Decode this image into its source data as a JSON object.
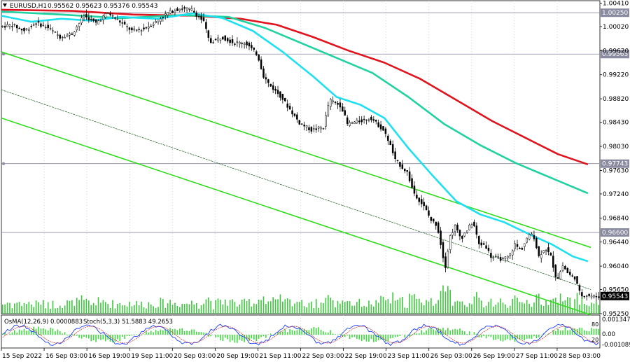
{
  "header": {
    "symbol": "EURUSD,H1",
    "ohlc": "0.95562 0.95623 0.95376 0.95543"
  },
  "sub_header": {
    "osma": "OsMA(12,26,9) 0.0000883",
    "stoch": "Stoch(5,3,3) 51.5883 49.2653"
  },
  "chart_data": {
    "type": "candlestick",
    "instrument": "EURUSD",
    "timeframe": "H1",
    "last": {
      "open": 0.95562,
      "high": 0.95623,
      "low": 0.95376,
      "close": 0.95543
    },
    "ylim": [
      0.9525,
      1.0045
    ],
    "yticks": [
      "1.00410",
      "1.00020",
      "0.99620",
      "0.99220",
      "0.98820",
      "0.98430",
      "0.98030",
      "0.97630",
      "0.97240",
      "0.96840",
      "0.96440",
      "0.96040",
      "0.95650",
      "0.95250"
    ],
    "xticks": [
      "15 Sep 2022",
      "16 Sep 03:00",
      "16 Sep 19:00",
      "19 Sep 11:00",
      "20 Sep 03:00",
      "20 Sep 19:00",
      "21 Sep 11:00",
      "22 Sep 03:00",
      "22 Sep 19:00",
      "23 Sep 11:00",
      "26 Sep 03:00",
      "26 Sep 19:00",
      "27 Sep 11:00",
      "28 Sep 03:00"
    ],
    "levels": [
      {
        "label": "1.00250",
        "value": 1.0025,
        "color": "#8a8aa0"
      },
      {
        "label": "0.99563",
        "value": 0.99563,
        "color": "#8a8aa0"
      },
      {
        "label": "0.97743",
        "value": 0.97743,
        "color": "#8a8aa0"
      },
      {
        "label": "0.96600",
        "value": 0.966,
        "color": "#8a8aa0"
      },
      {
        "label": "0.95543",
        "value": 0.95543,
        "color": "#000000",
        "current": true
      }
    ],
    "moving_averages": [
      {
        "color": "#e0141e",
        "points": [
          [
            0,
            1.003
          ],
          [
            0.12,
            1.0028
          ],
          [
            0.22,
            1.0022
          ],
          [
            0.32,
            1.002
          ],
          [
            0.4,
            1.0015
          ],
          [
            0.46,
            1.0005
          ],
          [
            0.52,
            0.9985
          ],
          [
            0.58,
            0.9962
          ],
          [
            0.64,
            0.9942
          ],
          [
            0.7,
            0.9915
          ],
          [
            0.76,
            0.988
          ],
          [
            0.82,
            0.9845
          ],
          [
            0.88,
            0.9815
          ],
          [
            0.93,
            0.979
          ],
          [
            0.98,
            0.9773
          ]
        ]
      },
      {
        "color": "#20d2a0",
        "points": [
          [
            0,
            1.0027
          ],
          [
            0.1,
            1.0022
          ],
          [
            0.2,
            1.0016
          ],
          [
            0.3,
            1.0021
          ],
          [
            0.38,
            1.0018
          ],
          [
            0.44,
            1.0
          ],
          [
            0.5,
            0.9975
          ],
          [
            0.56,
            0.995
          ],
          [
            0.62,
            0.9925
          ],
          [
            0.68,
            0.9885
          ],
          [
            0.74,
            0.984
          ],
          [
            0.8,
            0.9805
          ],
          [
            0.86,
            0.9775
          ],
          [
            0.92,
            0.975
          ],
          [
            0.98,
            0.9725
          ]
        ]
      },
      {
        "color": "#1ee0f0",
        "points": [
          [
            0,
            1.002
          ],
          [
            0.05,
            1.001
          ],
          [
            0.1,
            1.0015
          ],
          [
            0.15,
            1.0012
          ],
          [
            0.2,
            1.0018
          ],
          [
            0.26,
            1.0015
          ],
          [
            0.32,
            1.0024
          ],
          [
            0.37,
            1.0016
          ],
          [
            0.42,
            0.9995
          ],
          [
            0.47,
            0.996
          ],
          [
            0.52,
            0.992
          ],
          [
            0.56,
            0.9885
          ],
          [
            0.6,
            0.9872
          ],
          [
            0.64,
            0.985
          ],
          [
            0.68,
            0.98
          ],
          [
            0.72,
            0.9755
          ],
          [
            0.76,
            0.9712
          ],
          [
            0.8,
            0.969
          ],
          [
            0.84,
            0.9677
          ],
          [
            0.88,
            0.9658
          ],
          [
            0.92,
            0.964
          ],
          [
            0.955,
            0.962
          ],
          [
            0.98,
            0.9612
          ]
        ]
      }
    ],
    "channel": [
      {
        "color": "#32dc1e",
        "from": [
          0,
          0.996
        ],
        "to": [
          0.985,
          0.9635
        ]
      },
      {
        "color": "#1e5a1e",
        "from": [
          0,
          0.9897
        ],
        "to": [
          0.985,
          0.9565
        ],
        "thin": true
      },
      {
        "color": "#32dc1e",
        "from": [
          0,
          0.985
        ],
        "to": [
          0.985,
          0.9523
        ]
      }
    ],
    "price_path": [
      [
        0,
        1.0002
      ],
      [
        0.02,
        1.0005
      ],
      [
        0.04,
        0.9995
      ],
      [
        0.06,
        1.0008
      ],
      [
        0.08,
        1.0
      ],
      [
        0.1,
        0.9985
      ],
      [
        0.12,
        0.999
      ],
      [
        0.14,
        1.002
      ],
      [
        0.16,
        1.0008
      ],
      [
        0.18,
        1.0025
      ],
      [
        0.2,
        1.001
      ],
      [
        0.22,
        0.9995
      ],
      [
        0.24,
        0.9998
      ],
      [
        0.26,
        1.001
      ],
      [
        0.28,
        1.0025
      ],
      [
        0.3,
        1.0032
      ],
      [
        0.32,
        1.003
      ],
      [
        0.34,
        1.001
      ],
      [
        0.35,
        0.9975
      ],
      [
        0.37,
        0.9985
      ],
      [
        0.39,
        0.9975
      ],
      [
        0.41,
        0.9975
      ],
      [
        0.43,
        0.9955
      ],
      [
        0.44,
        0.992
      ],
      [
        0.45,
        0.9905
      ],
      [
        0.47,
        0.9885
      ],
      [
        0.48,
        0.987
      ],
      [
        0.5,
        0.9842
      ],
      [
        0.52,
        0.983
      ],
      [
        0.54,
        0.9835
      ],
      [
        0.55,
        0.988
      ],
      [
        0.57,
        0.987
      ],
      [
        0.58,
        0.984
      ],
      [
        0.6,
        0.9845
      ],
      [
        0.62,
        0.985
      ],
      [
        0.64,
        0.983
      ],
      [
        0.65,
        0.981
      ],
      [
        0.66,
        0.978
      ],
      [
        0.68,
        0.976
      ],
      [
        0.69,
        0.9728
      ],
      [
        0.71,
        0.97
      ],
      [
        0.72,
        0.968
      ],
      [
        0.73,
        0.9672
      ],
      [
        0.74,
        0.962
      ],
      [
        0.745,
        0.96
      ],
      [
        0.75,
        0.965
      ],
      [
        0.76,
        0.967
      ],
      [
        0.77,
        0.965
      ],
      [
        0.79,
        0.9678
      ],
      [
        0.8,
        0.964
      ],
      [
        0.81,
        0.964
      ],
      [
        0.82,
        0.962
      ],
      [
        0.84,
        0.9615
      ],
      [
        0.85,
        0.962
      ],
      [
        0.86,
        0.964
      ],
      [
        0.87,
        0.963
      ],
      [
        0.88,
        0.965
      ],
      [
        0.89,
        0.966
      ],
      [
        0.9,
        0.962
      ],
      [
        0.91,
        0.9635
      ],
      [
        0.92,
        0.962
      ],
      [
        0.93,
        0.958
      ],
      [
        0.94,
        0.9605
      ],
      [
        0.95,
        0.959
      ],
      [
        0.96,
        0.9585
      ],
      [
        0.97,
        0.9555
      ],
      [
        0.98,
        0.9556
      ],
      [
        0.99,
        0.9554
      ]
    ]
  }
}
